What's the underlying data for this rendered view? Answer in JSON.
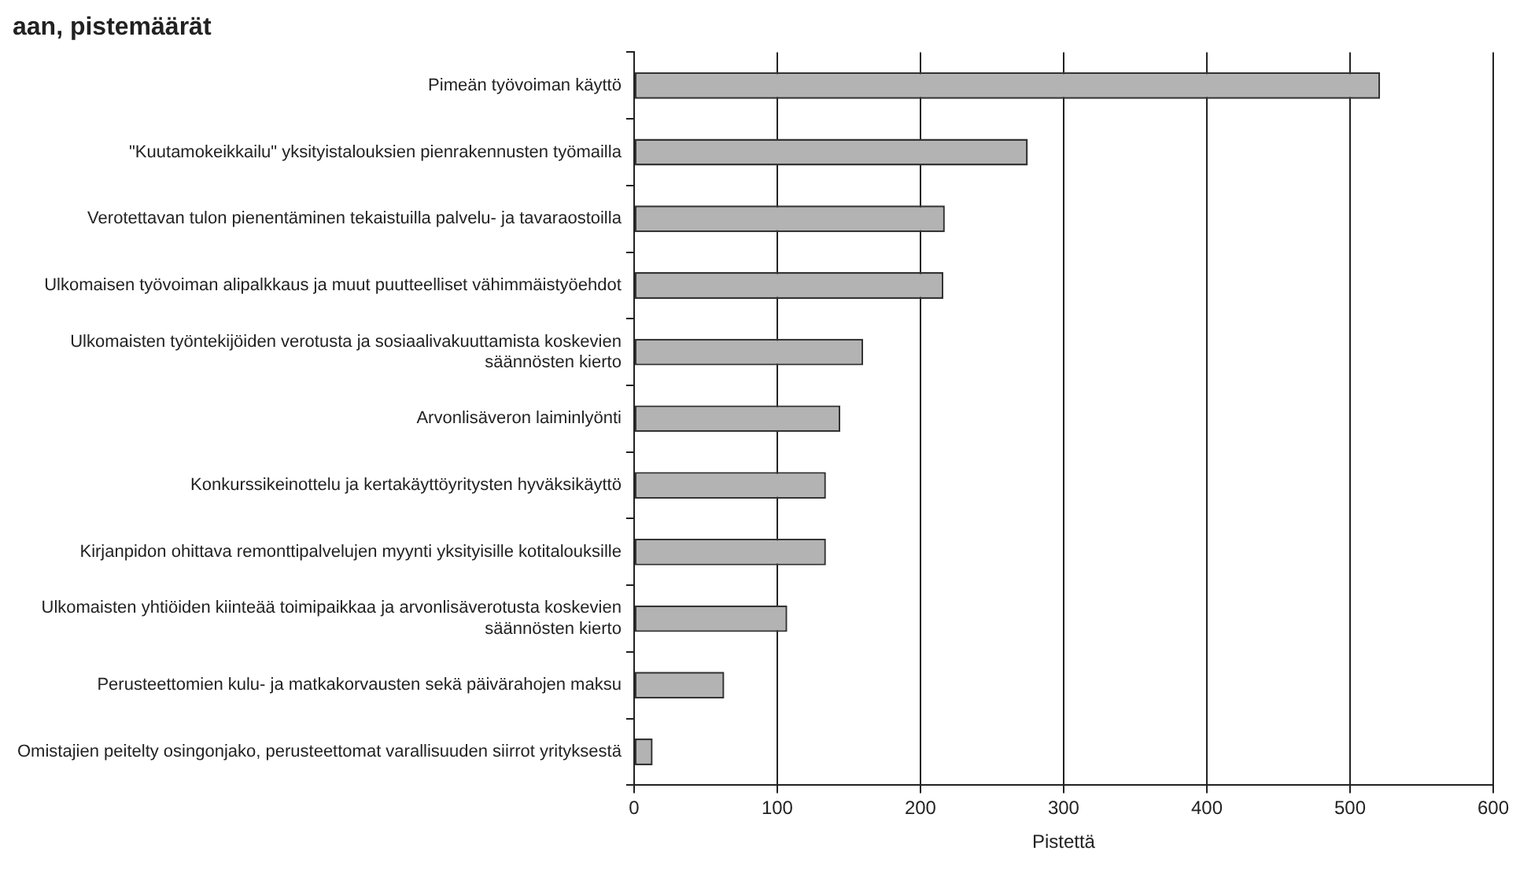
{
  "chart_data": {
    "type": "bar",
    "orientation": "horizontal",
    "title": "aan, pistemäärät",
    "xlabel": "Pistettä",
    "categories": [
      "Pimeän työvoiman käyttö",
      "\"Kuutamokeikkailu\" yksityistalouksien pienrakennusten työmailla",
      "Verotettavan tulon pienentäminen tekaistuilla palvelu- ja tavaraostoilla",
      "Ulkomaisen työvoiman alipalkkaus ja muut puutteelliset vähimmäistyöehdot",
      "Ulkomaisten työntekijöiden verotusta ja sosiaalivakuuttamista koskevien säännösten kierto",
      "Arvonlisäveron laiminlyönti",
      "Konkurssikeinottelu ja kertakäyttöyritysten hyväksikäyttö",
      "Kirjanpidon ohittava remonttipalvelujen myynti yksityisille kotitalouksille",
      "Ulkomaisten yhtiöiden kiinteää toimipaikkaa ja arvonlisäverotusta koskevien säännösten kierto",
      "Perusteettomien kulu- ja matkakorvausten sekä päivärahojen maksu",
      "Omistajien peitelty osingonjako, perusteettomat varallisuuden siirrot yrityksestä"
    ],
    "values": [
      521,
      275,
      217,
      216,
      160,
      144,
      134,
      134,
      107,
      63,
      13
    ],
    "color": "#b3b3b3",
    "xlim": [
      0,
      600
    ],
    "xticks": [
      0,
      100,
      200,
      300,
      400,
      500,
      600
    ],
    "grid": "x",
    "legend": false
  }
}
